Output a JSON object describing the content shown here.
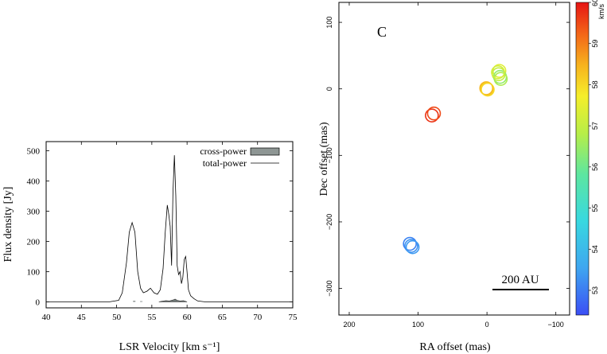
{
  "chart_data": [
    {
      "type": "line",
      "xlabel": "LSR Velocity [km s⁻¹]",
      "ylabel": "Flux density [Jy]",
      "xlim": [
        40,
        75
      ],
      "ylim": [
        -20,
        530
      ],
      "xticks": [
        40,
        45,
        50,
        55,
        60,
        65,
        70,
        75
      ],
      "yticks": [
        0,
        100,
        200,
        300,
        400,
        500
      ],
      "legend": {
        "position": "top-right",
        "entries": [
          "cross-power",
          "total-power"
        ]
      },
      "series": [
        {
          "name": "total-power",
          "x": [
            40,
            49,
            50.3,
            50.8,
            51.4,
            51.8,
            52.2,
            52.6,
            53.0,
            53.4,
            53.8,
            54.3,
            54.8,
            55.3,
            55.8,
            56.2,
            56.6,
            56.9,
            57.2,
            57.4,
            57.6,
            57.8,
            58.0,
            58.2,
            58.4,
            58.6,
            58.8,
            59.0,
            59.2,
            59.4,
            59.6,
            59.8,
            60.0,
            60.2,
            60.5,
            61.0,
            61.5,
            62.5,
            75
          ],
          "y": [
            0,
            0,
            5,
            30,
            130,
            230,
            262,
            230,
            100,
            45,
            30,
            35,
            45,
            30,
            25,
            40,
            110,
            230,
            320,
            290,
            250,
            120,
            360,
            485,
            350,
            120,
            90,
            100,
            60,
            80,
            140,
            150,
            100,
            40,
            20,
            10,
            3,
            0,
            0
          ]
        },
        {
          "name": "cross-power",
          "x": [
            56.0,
            56.5,
            57.0,
            57.5,
            58.0,
            58.3,
            58.6,
            59.0,
            59.5,
            60.0
          ],
          "y": [
            0,
            2,
            4,
            3,
            6,
            9,
            5,
            3,
            4,
            0
          ]
        }
      ],
      "extra_marks": {
        "52.5": 3,
        "53.5": 2
      }
    },
    {
      "type": "scatter",
      "panel_label": "C",
      "xlabel": "RA offset (mas)",
      "ylabel": "Dec offset (mas)",
      "xlim": [
        215,
        -120
      ],
      "ylim": [
        -340,
        130
      ],
      "xticks": [
        200,
        100,
        0,
        -100
      ],
      "xtick_labels": [
        "200",
        "100",
        "0",
        "−100"
      ],
      "yticks": [
        100,
        0,
        -100,
        -200,
        -300
      ],
      "ytick_labels": [
        "100",
        "0",
        "−100",
        "−200",
        "−300"
      ],
      "scale_bar": {
        "label": "200 AU"
      },
      "colorbar": {
        "min": 52.4,
        "max": 60,
        "unit": "km/s",
        "ticks": [
          53,
          54,
          55,
          56,
          57,
          58,
          59,
          60
        ]
      },
      "points": [
        {
          "ra": 110,
          "dec": -236,
          "v": 53.3
        },
        {
          "ra": 112,
          "dec": -233,
          "v": 53.1
        },
        {
          "ra": 108,
          "dec": -238,
          "v": 53.4
        },
        {
          "ra": 80,
          "dec": -40,
          "v": 59.7
        },
        {
          "ra": 77,
          "dec": -37,
          "v": 59.5
        },
        {
          "ra": 0,
          "dec": 0,
          "v": 58.2
        },
        {
          "ra": 1,
          "dec": 1,
          "v": 58.4
        },
        {
          "ra": -1,
          "dec": -1,
          "v": 58.0
        },
        {
          "ra": -18,
          "dec": 27,
          "v": 57.4
        },
        {
          "ra": -17,
          "dec": 22,
          "v": 57.0
        },
        {
          "ra": -19,
          "dec": 18,
          "v": 56.4
        },
        {
          "ra": -20,
          "dec": 15,
          "v": 56.7
        },
        {
          "ra": -16,
          "dec": 25,
          "v": 57.2
        }
      ]
    }
  ]
}
